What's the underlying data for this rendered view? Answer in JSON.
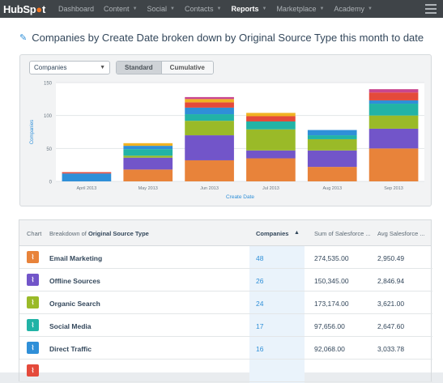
{
  "nav": {
    "logo_main": "HubSp",
    "logo_sprocket": "●",
    "logo_end": "t",
    "items": [
      {
        "label": "Dashboard",
        "caret": false,
        "active": false
      },
      {
        "label": "Content",
        "caret": true,
        "active": false
      },
      {
        "label": "Social",
        "caret": true,
        "active": false
      },
      {
        "label": "Contacts",
        "caret": true,
        "active": false
      },
      {
        "label": "Reports",
        "caret": true,
        "active": true
      },
      {
        "label": "Marketplace",
        "caret": true,
        "active": false
      },
      {
        "label": "Academy",
        "caret": true,
        "active": false
      }
    ],
    "caret_glyph": "▼"
  },
  "page": {
    "title": "Companies by Create Date broken down by Original Source Type this month to date",
    "pencil_icon": "✎"
  },
  "controls": {
    "select_value": "Companies",
    "select_caret": "▼",
    "toggle_standard": "Standard",
    "toggle_cumulative": "Cumulative"
  },
  "chart_data": {
    "type": "bar",
    "stacked": true,
    "ylabel": "Companies",
    "xlabel": "Create Date",
    "ylim": [
      0,
      150
    ],
    "yticks": [
      0,
      50,
      100,
      150
    ],
    "grid": true,
    "categories": [
      "April 2013",
      "May 2013",
      "Jun 2013",
      "Jul 2013",
      "Aug 2013",
      "Sep 2013"
    ],
    "series": [
      {
        "color": "#e8833a",
        "values": [
          0,
          18,
          32,
          35,
          22,
          50
        ]
      },
      {
        "color": "#7255c9",
        "values": [
          0,
          18,
          38,
          12,
          25,
          30
        ]
      },
      {
        "color": "#9aba28",
        "values": [
          0,
          3,
          22,
          32,
          17,
          20
        ]
      },
      {
        "color": "#22b3a6",
        "values": [
          0,
          10,
          10,
          12,
          6,
          18
        ]
      },
      {
        "color": "#2f8fd8",
        "values": [
          12,
          5,
          10,
          0,
          8,
          5
        ]
      },
      {
        "color": "#e44a3b",
        "values": [
          2,
          0,
          8,
          8,
          0,
          12
        ]
      },
      {
        "color": "#f0b323",
        "values": [
          0,
          4,
          5,
          5,
          0,
          0
        ]
      },
      {
        "color": "#c9468f",
        "values": [
          0,
          0,
          3,
          0,
          0,
          5
        ]
      }
    ]
  },
  "table": {
    "headers": {
      "chart": "Chart",
      "breakdown_prefix": "Breakdown of ",
      "breakdown_bold": "Original Source Type",
      "companies": "Companies",
      "sort_icon": "▲",
      "sum": "Sum of Salesforce ...",
      "avg": "Avg Salesforce ..."
    },
    "rows": [
      {
        "color": "#e8833a",
        "name": "Email Marketing",
        "companies": "48",
        "sum": "274,535.00",
        "avg": "2,950.49"
      },
      {
        "color": "#7255c9",
        "name": "Offline Sources",
        "companies": "26",
        "sum": "150,345.00",
        "avg": "2,846.94"
      },
      {
        "color": "#9aba28",
        "name": "Organic Search",
        "companies": "24",
        "sum": "173,174.00",
        "avg": "3,621.00"
      },
      {
        "color": "#22b3a6",
        "name": "Social Media",
        "companies": "17",
        "sum": "97,656.00",
        "avg": "2,647.60"
      },
      {
        "color": "#2f8fd8",
        "name": "Direct Traffic",
        "companies": "16",
        "sum": "92,068.00",
        "avg": "3,033.78"
      },
      {
        "color": "#e44a3b",
        "name": "",
        "companies": "",
        "sum": "",
        "avg": ""
      }
    ],
    "row_icon_glyph": "⌇"
  }
}
